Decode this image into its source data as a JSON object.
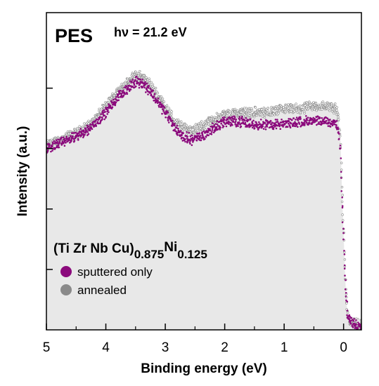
{
  "chart_data": {
    "type": "scatter",
    "panel_label": "PES",
    "photon_energy": "hν = 21.2 eV",
    "xlabel": "Binding energy (eV)",
    "ylabel": "Intensity (a.u.)",
    "xlim": [
      5,
      -0.3
    ],
    "ylim": [
      0,
      1.05
    ],
    "x_ticks": [
      5,
      4,
      3,
      2,
      1,
      0
    ],
    "x_tick_labels": [
      "5",
      "4",
      "3",
      "2",
      "1",
      "0"
    ],
    "y_ticks_unlabeled": [
      0.2,
      0.4,
      0.6,
      0.8
    ],
    "grid": false,
    "composition": {
      "base": "(Ti Zr Nb Cu)",
      "sub1": "0.875",
      "element": "Ni",
      "sub2": "0.125"
    },
    "legend_position": "bottom-left",
    "colors": {
      "sputtered": "#8b0a7c",
      "annealed": "#8a8a8a",
      "fill": "#e8e8e8"
    },
    "series": [
      {
        "name": "sputtered only",
        "x": [
          5.0,
          4.75,
          4.5,
          4.25,
          4.0,
          3.75,
          3.5,
          3.4,
          3.25,
          3.0,
          2.85,
          2.7,
          2.55,
          2.4,
          2.25,
          2.0,
          1.75,
          1.5,
          1.25,
          1.0,
          0.75,
          0.5,
          0.25,
          0.12,
          0.08,
          0.05,
          0.03,
          0.0,
          -0.03,
          -0.06,
          -0.1,
          -0.2,
          -0.3
        ],
        "y": [
          0.6,
          0.62,
          0.64,
          0.67,
          0.72,
          0.78,
          0.82,
          0.82,
          0.79,
          0.72,
          0.67,
          0.64,
          0.63,
          0.64,
          0.66,
          0.69,
          0.69,
          0.68,
          0.68,
          0.68,
          0.69,
          0.69,
          0.69,
          0.68,
          0.65,
          0.58,
          0.45,
          0.3,
          0.15,
          0.06,
          0.03,
          0.02,
          0.02
        ]
      },
      {
        "name": "annealed",
        "x": [
          5.0,
          4.75,
          4.5,
          4.25,
          4.0,
          3.75,
          3.5,
          3.4,
          3.25,
          3.0,
          2.85,
          2.7,
          2.55,
          2.4,
          2.25,
          2.0,
          1.75,
          1.5,
          1.25,
          1.0,
          0.75,
          0.5,
          0.25,
          0.12,
          0.08,
          0.05,
          0.03,
          0.0,
          -0.03,
          -0.06,
          -0.1,
          -0.2,
          -0.3
        ],
        "y": [
          0.61,
          0.63,
          0.65,
          0.68,
          0.74,
          0.8,
          0.84,
          0.84,
          0.81,
          0.74,
          0.69,
          0.67,
          0.66,
          0.67,
          0.69,
          0.71,
          0.72,
          0.72,
          0.72,
          0.73,
          0.73,
          0.74,
          0.74,
          0.73,
          0.7,
          0.62,
          0.48,
          0.32,
          0.16,
          0.06,
          0.03,
          0.02,
          0.02
        ]
      }
    ]
  }
}
